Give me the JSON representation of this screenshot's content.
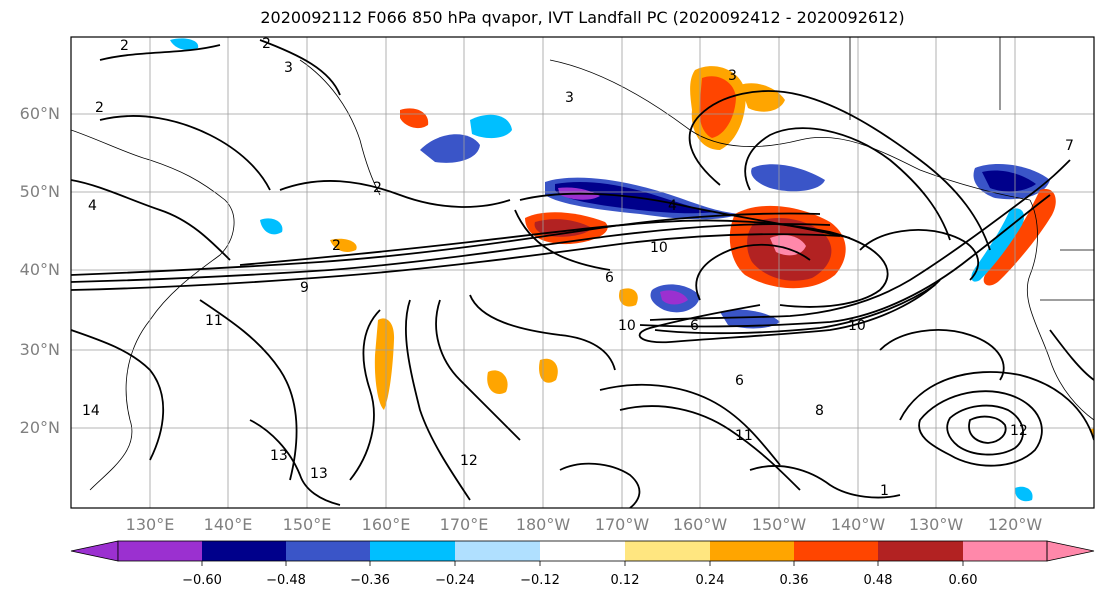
{
  "title": "2020092112 F066 850 hPa qvapor, IVT Landfall PC (2020092412 - 2020092612)",
  "colors": {
    "frame": "#000000",
    "grid": "#9e9e9e",
    "contour": "#000000",
    "land_line": "#000000"
  },
  "axes": {
    "lat_ticks": [
      "60°N",
      "50°N",
      "40°N",
      "30°N",
      "20°N"
    ],
    "lon_ticks": [
      "130°E",
      "140°E",
      "150°E",
      "160°E",
      "170°E",
      "180°W",
      "170°W",
      "160°W",
      "150°W",
      "140°W",
      "130°W",
      "120°W"
    ]
  },
  "colorbar": {
    "colors": [
      "#9b30d0",
      "#00008b",
      "#3a55c8",
      "#00bfff",
      "#b0e0ff",
      "#ffffff",
      "#ffe680",
      "#ffa500",
      "#ff4500",
      "#b22222",
      "#ff88aa"
    ],
    "labels": [
      "−0.60",
      "−0.48",
      "−0.36",
      "−0.24",
      "−0.12",
      "0.12",
      "0.24",
      "0.36",
      "0.48",
      "0.60"
    ]
  },
  "contour_labels": [
    "2",
    "2",
    "3",
    "3",
    "2",
    "2",
    "4",
    "2",
    "10",
    "6",
    "6",
    "10",
    "9",
    "11",
    "12",
    "13",
    "13",
    "11",
    "8",
    "6",
    "14",
    "12",
    "3",
    "1",
    "10",
    "4",
    "7"
  ]
}
